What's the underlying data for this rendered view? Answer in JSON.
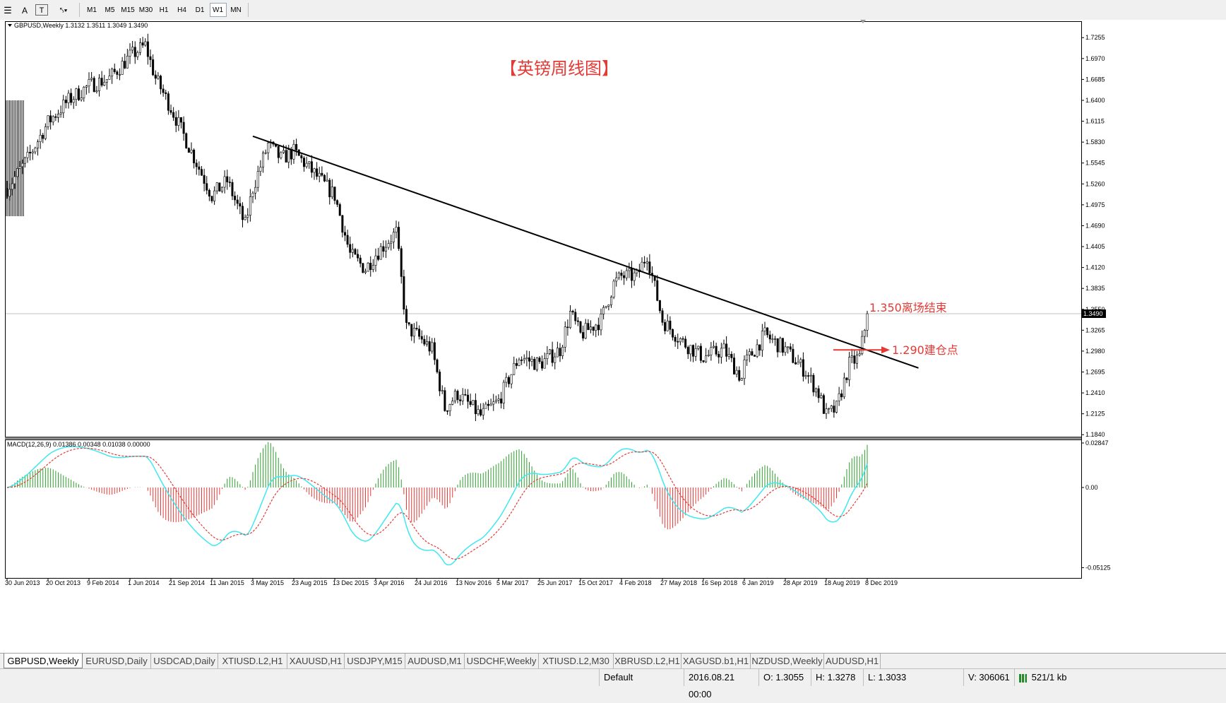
{
  "toolbar": {
    "timeframes": [
      {
        "label": "M1",
        "active": false
      },
      {
        "label": "M5",
        "active": false
      },
      {
        "label": "M15",
        "active": false
      },
      {
        "label": "M30",
        "active": false
      },
      {
        "label": "H1",
        "active": false
      },
      {
        "label": "H4",
        "active": false
      },
      {
        "label": "D1",
        "active": false
      },
      {
        "label": "W1",
        "active": true
      },
      {
        "label": "MN",
        "active": false
      }
    ]
  },
  "chart_data": {
    "type": "candlestick",
    "symbol_header": "GBPUSD,Weekly  1.3132 1.3511 1.3049 1.3490",
    "annotation_title": "【英镑周线图】",
    "price_axis": {
      "range": [
        1.17,
        1.74
      ],
      "ticks": [
        "1.7255",
        "1.6970",
        "1.6685",
        "1.6400",
        "1.6115",
        "1.5830",
        "1.5545",
        "1.5260",
        "1.4975",
        "1.4690",
        "1.4405",
        "1.4120",
        "1.3835",
        "1.3550",
        "1.3265",
        "1.2980",
        "1.2695",
        "1.2410",
        "1.2125",
        "1.1840"
      ],
      "current_price": "1.3490"
    },
    "time_axis": {
      "ticks": [
        "30 Jun 2013",
        "20 Oct 2013",
        "9 Feb 2014",
        "1 Jun 2014",
        "21 Sep 2014",
        "11 Jan 2015",
        "3 May 2015",
        "23 Aug 2015",
        "13 Dec 2015",
        "3 Apr 2016",
        "24 Jul 2016",
        "13 Nov 2016",
        "5 Mar 2017",
        "25 Jun 2017",
        "15 Oct 2017",
        "4 Feb 2018",
        "27 May 2018",
        "16 Sep 2018",
        "6 Jan 2019",
        "28 Apr 2019",
        "18 Aug 2019",
        "8 Dec 2019"
      ]
    },
    "price_path": [
      {
        "date": "2013-06-30",
        "price": 1.52
      },
      {
        "date": "2013-08-25",
        "price": 1.56
      },
      {
        "date": "2013-10-20",
        "price": 1.61
      },
      {
        "date": "2013-12-15",
        "price": 1.64
      },
      {
        "date": "2014-02-09",
        "price": 1.66
      },
      {
        "date": "2014-04-06",
        "price": 1.67
      },
      {
        "date": "2014-06-01",
        "price": 1.7
      },
      {
        "date": "2014-07-13",
        "price": 1.715
      },
      {
        "date": "2014-08-10",
        "price": 1.67
      },
      {
        "date": "2014-09-21",
        "price": 1.63
      },
      {
        "date": "2014-11-16",
        "price": 1.57
      },
      {
        "date": "2015-01-11",
        "price": 1.51
      },
      {
        "date": "2015-02-22",
        "price": 1.53
      },
      {
        "date": "2015-04-12",
        "price": 1.47
      },
      {
        "date": "2015-05-03",
        "price": 1.52
      },
      {
        "date": "2015-06-14",
        "price": 1.58
      },
      {
        "date": "2015-07-19",
        "price": 1.56
      },
      {
        "date": "2015-08-23",
        "price": 1.57
      },
      {
        "date": "2015-10-18",
        "price": 1.54
      },
      {
        "date": "2015-12-13",
        "price": 1.51
      },
      {
        "date": "2016-01-24",
        "price": 1.43
      },
      {
        "date": "2016-03-06",
        "price": 1.41
      },
      {
        "date": "2016-04-03",
        "price": 1.43
      },
      {
        "date": "2016-05-29",
        "price": 1.46
      },
      {
        "date": "2016-06-26",
        "price": 1.33
      },
      {
        "date": "2016-07-24",
        "price": 1.32
      },
      {
        "date": "2016-09-04",
        "price": 1.3
      },
      {
        "date": "2016-10-09",
        "price": 1.22
      },
      {
        "date": "2016-11-13",
        "price": 1.24
      },
      {
        "date": "2017-01-15",
        "price": 1.21
      },
      {
        "date": "2017-03-05",
        "price": 1.23
      },
      {
        "date": "2017-04-30",
        "price": 1.29
      },
      {
        "date": "2017-06-25",
        "price": 1.28
      },
      {
        "date": "2017-08-20",
        "price": 1.3
      },
      {
        "date": "2017-09-17",
        "price": 1.35
      },
      {
        "date": "2017-10-15",
        "price": 1.32
      },
      {
        "date": "2017-12-10",
        "price": 1.34
      },
      {
        "date": "2018-01-14",
        "price": 1.39
      },
      {
        "date": "2018-02-04",
        "price": 1.4
      },
      {
        "date": "2018-03-18",
        "price": 1.4
      },
      {
        "date": "2018-04-15",
        "price": 1.43
      },
      {
        "date": "2018-05-27",
        "price": 1.34
      },
      {
        "date": "2018-07-22",
        "price": 1.31
      },
      {
        "date": "2018-09-16",
        "price": 1.29
      },
      {
        "date": "2018-11-11",
        "price": 1.3
      },
      {
        "date": "2018-12-30",
        "price": 1.26
      },
      {
        "date": "2019-01-06",
        "price": 1.28
      },
      {
        "date": "2019-03-03",
        "price": 1.32
      },
      {
        "date": "2019-04-28",
        "price": 1.3
      },
      {
        "date": "2019-06-23",
        "price": 1.27
      },
      {
        "date": "2019-07-28",
        "price": 1.24
      },
      {
        "date": "2019-08-18",
        "price": 1.21
      },
      {
        "date": "2019-09-15",
        "price": 1.22
      },
      {
        "date": "2019-10-20",
        "price": 1.28
      },
      {
        "date": "2019-11-17",
        "price": 1.29
      },
      {
        "date": "2019-12-08",
        "price": 1.349
      }
    ],
    "trendline": [
      {
        "date": "2015-05-03",
        "price": 1.591
      },
      {
        "date": "2020-04-26",
        "price": 1.275
      }
    ],
    "annotations": [
      {
        "text": "1.350离场结束",
        "price": 1.35,
        "color": "#e53935"
      },
      {
        "text": "1.290建仓点",
        "price": 1.29,
        "color": "#e53935"
      }
    ],
    "macd": {
      "header": "MACD(12,26,9) 0.01386 0.00348 0.01038 0.00000",
      "range": [
        -0.05125,
        0.02847
      ],
      "ticks": [
        "0.02847",
        "0.00",
        "-0.05125"
      ],
      "colors": {
        "main": "#3ee8f0",
        "signal": "#e53935",
        "hist_pos": "#2e9e2e",
        "hist_neg": "#e53935"
      }
    }
  },
  "tabs": [
    {
      "label": "GBPUSD,Weekly",
      "active": true
    },
    {
      "label": "EURUSD,Daily",
      "active": false
    },
    {
      "label": "USDCAD,Daily",
      "active": false
    },
    {
      "label": "XTIUSD.L2,H1",
      "active": false
    },
    {
      "label": "XAUUSD,H1",
      "active": false
    },
    {
      "label": "USDJPY,M15",
      "active": false
    },
    {
      "label": "AUDUSD,M1",
      "active": false
    },
    {
      "label": "USDCHF,Weekly",
      "active": false
    },
    {
      "label": "XTIUSD.L2,M30",
      "active": false
    },
    {
      "label": "XBRUSD.L2,H1",
      "active": false
    },
    {
      "label": "XAGUSD.b1,H1",
      "active": false
    },
    {
      "label": "NZDUSD,Weekly",
      "active": false
    },
    {
      "label": "AUDUSD,H1",
      "active": false
    }
  ],
  "status": {
    "profile": "Default",
    "datetime": "2016.08.21 00:00",
    "open": "O: 1.3055",
    "high": "H: 1.3278",
    "low": "L: 1.3033",
    "volume": "V: 306061",
    "traffic": "521/1 kb"
  }
}
